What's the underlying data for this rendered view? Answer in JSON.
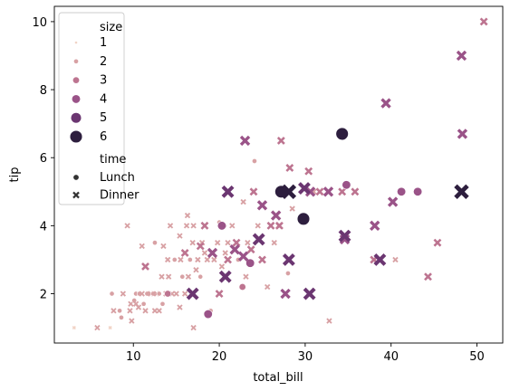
{
  "chart_data": {
    "type": "scatter",
    "xlabel": "total_bill",
    "ylabel": "tip",
    "xlim": [
      0.8,
      53.0
    ],
    "ylim": [
      0.55,
      10.45
    ],
    "xticks": [
      10,
      20,
      30,
      40,
      50
    ],
    "yticks": [
      2,
      4,
      6,
      8,
      10
    ],
    "grid": false,
    "legend_position": "top-left",
    "hue": "size",
    "style": "time",
    "size_legend_title": "size",
    "time_legend_title": "time",
    "size_levels": [
      "1",
      "2",
      "3",
      "4",
      "5",
      "6"
    ],
    "time_levels": [
      "Lunch",
      "Dinner"
    ],
    "size_colors": {
      "1": "#f1d3c6",
      "2": "#d8a1a4",
      "3": "#bd7490",
      "4": "#9a5388",
      "5": "#6b3671",
      "6": "#2d1e3e"
    },
    "points": [
      {
        "x": 3.1,
        "y": 1.0,
        "size": 1,
        "time": "Dinner"
      },
      {
        "x": 5.8,
        "y": 1.0,
        "size": 2,
        "time": "Dinner"
      },
      {
        "x": 7.3,
        "y": 1.0,
        "size": 1,
        "time": "Dinner"
      },
      {
        "x": 7.5,
        "y": 2.0,
        "size": 2,
        "time": "Lunch"
      },
      {
        "x": 7.7,
        "y": 1.5,
        "size": 2,
        "time": "Dinner"
      },
      {
        "x": 8.6,
        "y": 1.3,
        "size": 2,
        "time": "Lunch"
      },
      {
        "x": 8.4,
        "y": 1.5,
        "size": 2,
        "time": "Lunch"
      },
      {
        "x": 8.8,
        "y": 2.0,
        "size": 2,
        "time": "Dinner"
      },
      {
        "x": 9.6,
        "y": 1.5,
        "size": 2,
        "time": "Dinner"
      },
      {
        "x": 9.7,
        "y": 1.7,
        "size": 2,
        "time": "Dinner"
      },
      {
        "x": 9.8,
        "y": 1.2,
        "size": 2,
        "time": "Dinner"
      },
      {
        "x": 10.1,
        "y": 1.8,
        "size": 2,
        "time": "Lunch"
      },
      {
        "x": 10.3,
        "y": 2.0,
        "size": 2,
        "time": "Lunch"
      },
      {
        "x": 10.3,
        "y": 1.7,
        "size": 2,
        "time": "Dinner"
      },
      {
        "x": 10.6,
        "y": 1.6,
        "size": 2,
        "time": "Dinner"
      },
      {
        "x": 10.7,
        "y": 2.0,
        "size": 2,
        "time": "Lunch"
      },
      {
        "x": 11.0,
        "y": 2.0,
        "size": 2,
        "time": "Dinner"
      },
      {
        "x": 11.2,
        "y": 1.7,
        "size": 2,
        "time": "Lunch"
      },
      {
        "x": 11.4,
        "y": 1.5,
        "size": 2,
        "time": "Dinner"
      },
      {
        "x": 11.6,
        "y": 2.0,
        "size": 2,
        "time": "Lunch"
      },
      {
        "x": 12.0,
        "y": 2.0,
        "size": 2,
        "time": "Dinner"
      },
      {
        "x": 12.3,
        "y": 2.0,
        "size": 2,
        "time": "Lunch"
      },
      {
        "x": 12.5,
        "y": 1.5,
        "size": 2,
        "time": "Dinner"
      },
      {
        "x": 12.7,
        "y": 2.0,
        "size": 2,
        "time": "Dinner"
      },
      {
        "x": 13.0,
        "y": 2.0,
        "size": 2,
        "time": "Lunch"
      },
      {
        "x": 13.0,
        "y": 1.5,
        "size": 2,
        "time": "Dinner"
      },
      {
        "x": 13.3,
        "y": 2.5,
        "size": 2,
        "time": "Dinner"
      },
      {
        "x": 13.4,
        "y": 1.7,
        "size": 2,
        "time": "Lunch"
      },
      {
        "x": 13.8,
        "y": 2.0,
        "size": 2,
        "time": "Dinner"
      },
      {
        "x": 14.0,
        "y": 3.0,
        "size": 2,
        "time": "Dinner"
      },
      {
        "x": 14.1,
        "y": 2.5,
        "size": 2,
        "time": "Dinner"
      },
      {
        "x": 14.3,
        "y": 4.0,
        "size": 2,
        "time": "Dinner"
      },
      {
        "x": 14.5,
        "y": 2.0,
        "size": 2,
        "time": "Dinner"
      },
      {
        "x": 14.8,
        "y": 3.0,
        "size": 2,
        "time": "Lunch"
      },
      {
        "x": 15.0,
        "y": 2.0,
        "size": 2,
        "time": "Dinner"
      },
      {
        "x": 15.4,
        "y": 1.6,
        "size": 2,
        "time": "Dinner"
      },
      {
        "x": 15.5,
        "y": 3.0,
        "size": 2,
        "time": "Dinner"
      },
      {
        "x": 15.7,
        "y": 2.5,
        "size": 2,
        "time": "Lunch"
      },
      {
        "x": 16.0,
        "y": 2.0,
        "size": 2,
        "time": "Dinner"
      },
      {
        "x": 16.3,
        "y": 4.3,
        "size": 2,
        "time": "Dinner"
      },
      {
        "x": 16.4,
        "y": 2.5,
        "size": 2,
        "time": "Dinner"
      },
      {
        "x": 16.6,
        "y": 3.0,
        "size": 2,
        "time": "Lunch"
      },
      {
        "x": 16.9,
        "y": 3.5,
        "size": 2,
        "time": "Dinner"
      },
      {
        "x": 17.0,
        "y": 1.0,
        "size": 2,
        "time": "Dinner"
      },
      {
        "x": 17.3,
        "y": 2.7,
        "size": 2,
        "time": "Dinner"
      },
      {
        "x": 17.5,
        "y": 3.0,
        "size": 2,
        "time": "Dinner"
      },
      {
        "x": 17.8,
        "y": 2.5,
        "size": 2,
        "time": "Lunch"
      },
      {
        "x": 18.0,
        "y": 3.5,
        "size": 2,
        "time": "Dinner"
      },
      {
        "x": 18.3,
        "y": 3.2,
        "size": 2,
        "time": "Dinner"
      },
      {
        "x": 18.6,
        "y": 3.0,
        "size": 2,
        "time": "Dinner"
      },
      {
        "x": 19.0,
        "y": 1.5,
        "size": 2,
        "time": "Lunch"
      },
      {
        "x": 19.4,
        "y": 3.0,
        "size": 2,
        "time": "Dinner"
      },
      {
        "x": 19.8,
        "y": 3.5,
        "size": 2,
        "time": "Dinner"
      },
      {
        "x": 20.0,
        "y": 4.1,
        "size": 2,
        "time": "Lunch"
      },
      {
        "x": 20.3,
        "y": 2.8,
        "size": 2,
        "time": "Dinner"
      },
      {
        "x": 20.7,
        "y": 3.2,
        "size": 2,
        "time": "Dinner"
      },
      {
        "x": 21.0,
        "y": 3.5,
        "size": 2,
        "time": "Dinner"
      },
      {
        "x": 21.5,
        "y": 4.0,
        "size": 2,
        "time": "Dinner"
      },
      {
        "x": 22.2,
        "y": 3.0,
        "size": 2,
        "time": "Lunch"
      },
      {
        "x": 22.8,
        "y": 4.7,
        "size": 2,
        "time": "Dinner"
      },
      {
        "x": 23.1,
        "y": 2.5,
        "size": 2,
        "time": "Dinner"
      },
      {
        "x": 23.3,
        "y": 3.5,
        "size": 2,
        "time": "Dinner"
      },
      {
        "x": 24.1,
        "y": 5.9,
        "size": 2,
        "time": "Lunch"
      },
      {
        "x": 24.5,
        "y": 4.0,
        "size": 2,
        "time": "Dinner"
      },
      {
        "x": 25.6,
        "y": 2.2,
        "size": 2,
        "time": "Dinner"
      },
      {
        "x": 26.4,
        "y": 3.5,
        "size": 2,
        "time": "Dinner"
      },
      {
        "x": 26.9,
        "y": 4.0,
        "size": 2,
        "time": "Dinner"
      },
      {
        "x": 28.0,
        "y": 2.6,
        "size": 2,
        "time": "Lunch"
      },
      {
        "x": 28.5,
        "y": 4.5,
        "size": 2,
        "time": "Dinner"
      },
      {
        "x": 31.0,
        "y": 5.0,
        "size": 2,
        "time": "Dinner"
      },
      {
        "x": 32.8,
        "y": 1.2,
        "size": 2,
        "time": "Dinner"
      },
      {
        "x": 40.5,
        "y": 3.0,
        "size": 2,
        "time": "Dinner"
      },
      {
        "x": 9.3,
        "y": 4.0,
        "size": 2,
        "time": "Dinner"
      },
      {
        "x": 11.0,
        "y": 3.4,
        "size": 2,
        "time": "Dinner"
      },
      {
        "x": 12.5,
        "y": 3.5,
        "size": 2,
        "time": "Lunch"
      },
      {
        "x": 13.5,
        "y": 3.4,
        "size": 2,
        "time": "Dinner"
      },
      {
        "x": 15.4,
        "y": 3.7,
        "size": 2,
        "time": "Dinner"
      },
      {
        "x": 16.2,
        "y": 4.0,
        "size": 2,
        "time": "Dinner"
      },
      {
        "x": 17.0,
        "y": 4.0,
        "size": 2,
        "time": "Dinner"
      },
      {
        "x": 18.3,
        "y": 4.0,
        "size": 3,
        "time": "Dinner"
      },
      {
        "x": 20.5,
        "y": 4.0,
        "size": 3,
        "time": "Lunch"
      },
      {
        "x": 21.0,
        "y": 3.0,
        "size": 3,
        "time": "Dinner"
      },
      {
        "x": 22.0,
        "y": 3.5,
        "size": 3,
        "time": "Dinner"
      },
      {
        "x": 23.7,
        "y": 3.3,
        "size": 3,
        "time": "Dinner"
      },
      {
        "x": 25.0,
        "y": 3.0,
        "size": 3,
        "time": "Dinner"
      },
      {
        "x": 27.2,
        "y": 6.5,
        "size": 3,
        "time": "Dinner"
      },
      {
        "x": 28.2,
        "y": 5.7,
        "size": 3,
        "time": "Dinner"
      },
      {
        "x": 30.4,
        "y": 5.6,
        "size": 3,
        "time": "Dinner"
      },
      {
        "x": 31.7,
        "y": 5.0,
        "size": 3,
        "time": "Dinner"
      },
      {
        "x": 34.3,
        "y": 5.0,
        "size": 3,
        "time": "Dinner"
      },
      {
        "x": 35.8,
        "y": 5.0,
        "size": 3,
        "time": "Dinner"
      },
      {
        "x": 38.0,
        "y": 3.0,
        "size": 3,
        "time": "Dinner"
      },
      {
        "x": 44.3,
        "y": 2.5,
        "size": 3,
        "time": "Dinner"
      },
      {
        "x": 45.4,
        "y": 3.5,
        "size": 3,
        "time": "Dinner"
      },
      {
        "x": 50.8,
        "y": 10.0,
        "size": 3,
        "time": "Dinner"
      },
      {
        "x": 11.4,
        "y": 2.8,
        "size": 3,
        "time": "Dinner"
      },
      {
        "x": 14.0,
        "y": 2.0,
        "size": 3,
        "time": "Lunch"
      },
      {
        "x": 16.0,
        "y": 3.2,
        "size": 3,
        "time": "Dinner"
      },
      {
        "x": 17.8,
        "y": 3.4,
        "size": 3,
        "time": "Dinner"
      },
      {
        "x": 20.0,
        "y": 2.0,
        "size": 3,
        "time": "Dinner"
      },
      {
        "x": 22.7,
        "y": 2.2,
        "size": 3,
        "time": "Lunch"
      },
      {
        "x": 24.0,
        "y": 5.0,
        "size": 3,
        "time": "Dinner"
      },
      {
        "x": 26.0,
        "y": 4.0,
        "size": 3,
        "time": "Dinner"
      },
      {
        "x": 27.0,
        "y": 4.0,
        "size": 3,
        "time": "Dinner"
      },
      {
        "x": 18.7,
        "y": 1.4,
        "size": 4,
        "time": "Lunch"
      },
      {
        "x": 19.2,
        "y": 3.2,
        "size": 4,
        "time": "Dinner"
      },
      {
        "x": 20.3,
        "y": 4.0,
        "size": 4,
        "time": "Lunch"
      },
      {
        "x": 21.8,
        "y": 3.3,
        "size": 4,
        "time": "Dinner"
      },
      {
        "x": 23.6,
        "y": 2.9,
        "size": 4,
        "time": "Lunch"
      },
      {
        "x": 25.0,
        "y": 4.6,
        "size": 4,
        "time": "Dinner"
      },
      {
        "x": 27.7,
        "y": 2.0,
        "size": 4,
        "time": "Dinner"
      },
      {
        "x": 29.8,
        "y": 4.2,
        "size": 4,
        "time": "Dinner"
      },
      {
        "x": 30.6,
        "y": 5.0,
        "size": 4,
        "time": "Dinner"
      },
      {
        "x": 32.7,
        "y": 5.0,
        "size": 4,
        "time": "Dinner"
      },
      {
        "x": 34.6,
        "y": 3.6,
        "size": 4,
        "time": "Dinner"
      },
      {
        "x": 34.8,
        "y": 5.2,
        "size": 4,
        "time": "Lunch"
      },
      {
        "x": 38.1,
        "y": 4.0,
        "size": 4,
        "time": "Dinner"
      },
      {
        "x": 39.4,
        "y": 7.6,
        "size": 4,
        "time": "Dinner"
      },
      {
        "x": 40.2,
        "y": 4.7,
        "size": 4,
        "time": "Dinner"
      },
      {
        "x": 41.2,
        "y": 5.0,
        "size": 4,
        "time": "Lunch"
      },
      {
        "x": 43.1,
        "y": 5.0,
        "size": 4,
        "time": "Lunch"
      },
      {
        "x": 48.2,
        "y": 9.0,
        "size": 4,
        "time": "Dinner"
      },
      {
        "x": 48.3,
        "y": 6.7,
        "size": 4,
        "time": "Dinner"
      },
      {
        "x": 23.0,
        "y": 6.5,
        "size": 4,
        "time": "Dinner"
      },
      {
        "x": 26.6,
        "y": 4.3,
        "size": 4,
        "time": "Dinner"
      },
      {
        "x": 22.8,
        "y": 3.1,
        "size": 4,
        "time": "Dinner"
      },
      {
        "x": 21.0,
        "y": 5.0,
        "size": 5,
        "time": "Dinner"
      },
      {
        "x": 20.7,
        "y": 2.5,
        "size": 5,
        "time": "Dinner"
      },
      {
        "x": 28.1,
        "y": 3.0,
        "size": 5,
        "time": "Dinner"
      },
      {
        "x": 29.9,
        "y": 5.1,
        "size": 5,
        "time": "Dinner"
      },
      {
        "x": 30.5,
        "y": 2.0,
        "size": 5,
        "time": "Dinner"
      },
      {
        "x": 34.6,
        "y": 3.7,
        "size": 5,
        "time": "Dinner"
      },
      {
        "x": 38.7,
        "y": 3.0,
        "size": 5,
        "time": "Dinner"
      },
      {
        "x": 16.9,
        "y": 2.0,
        "size": 5,
        "time": "Dinner"
      },
      {
        "x": 24.6,
        "y": 3.6,
        "size": 5,
        "time": "Dinner"
      },
      {
        "x": 27.2,
        "y": 5.0,
        "size": 6,
        "time": "Lunch"
      },
      {
        "x": 29.8,
        "y": 4.2,
        "size": 6,
        "time": "Lunch"
      },
      {
        "x": 34.3,
        "y": 6.7,
        "size": 6,
        "time": "Lunch"
      },
      {
        "x": 48.2,
        "y": 5.0,
        "size": 6,
        "time": "Dinner"
      },
      {
        "x": 28.1,
        "y": 5.0,
        "size": 6,
        "time": "Dinner"
      }
    ]
  }
}
